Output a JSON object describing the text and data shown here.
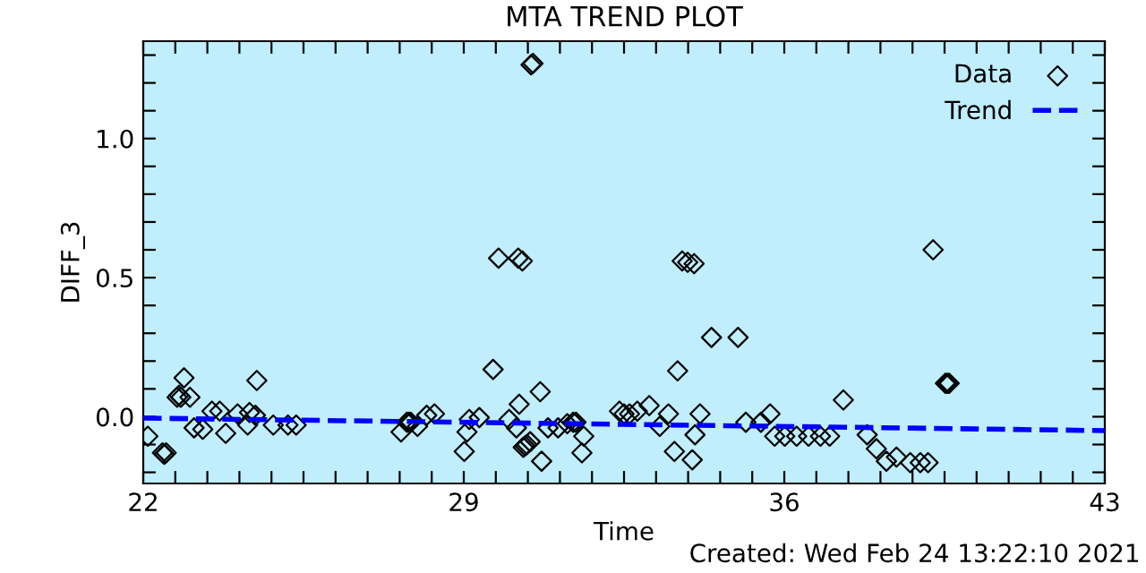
{
  "chart_data": {
    "type": "scatter",
    "title": "MTA TREND PLOT",
    "xlabel": "Time",
    "ylabel": "DIFF_3",
    "annotations": [
      "Created: Wed Feb 24 13:22:10 2021"
    ],
    "xlim": [
      22,
      43
    ],
    "ylim": [
      -0.24,
      1.35
    ],
    "xticks": [
      {
        "value": 22,
        "label": "22"
      },
      {
        "value": 22.7,
        "label": null
      },
      {
        "value": 23.4,
        "label": null
      },
      {
        "value": 24.1,
        "label": null
      },
      {
        "value": 24.8,
        "label": null
      },
      {
        "value": 25.5,
        "label": null
      },
      {
        "value": 26.2,
        "label": null
      },
      {
        "value": 26.9,
        "label": null
      },
      {
        "value": 27.6,
        "label": null
      },
      {
        "value": 28.3,
        "label": null
      },
      {
        "value": 29,
        "label": "29"
      },
      {
        "value": 29.7,
        "label": null
      },
      {
        "value": 30.4,
        "label": null
      },
      {
        "value": 31.1,
        "label": null
      },
      {
        "value": 31.8,
        "label": null
      },
      {
        "value": 32.5,
        "label": null
      },
      {
        "value": 33.2,
        "label": null
      },
      {
        "value": 33.9,
        "label": null
      },
      {
        "value": 34.6,
        "label": null
      },
      {
        "value": 35.3,
        "label": null
      },
      {
        "value": 36,
        "label": "36"
      },
      {
        "value": 36.7,
        "label": null
      },
      {
        "value": 37.4,
        "label": null
      },
      {
        "value": 38.1,
        "label": null
      },
      {
        "value": 38.8,
        "label": null
      },
      {
        "value": 39.5,
        "label": null
      },
      {
        "value": 40.2,
        "label": null
      },
      {
        "value": 40.9,
        "label": null
      },
      {
        "value": 41.6,
        "label": null
      },
      {
        "value": 42.3,
        "label": null
      },
      {
        "value": 43,
        "label": "43"
      }
    ],
    "yticks": [
      {
        "value": -0.2,
        "label": null
      },
      {
        "value": -0.1,
        "label": null
      },
      {
        "value": 0.0,
        "label": "0.0"
      },
      {
        "value": 0.1,
        "label": null
      },
      {
        "value": 0.2,
        "label": null
      },
      {
        "value": 0.3,
        "label": null
      },
      {
        "value": 0.4,
        "label": null
      },
      {
        "value": 0.5,
        "label": "0.5"
      },
      {
        "value": 0.6,
        "label": null
      },
      {
        "value": 0.7,
        "label": null
      },
      {
        "value": 0.8,
        "label": null
      },
      {
        "value": 0.9,
        "label": null
      },
      {
        "value": 1.0,
        "label": "1.0"
      },
      {
        "value": 1.1,
        "label": null
      },
      {
        "value": 1.2,
        "label": null
      },
      {
        "value": 1.3,
        "label": null
      }
    ],
    "grid": false,
    "legend": "top right",
    "series": [
      {
        "name": "Data",
        "color": "#000000",
        "marker": "diamond",
        "x": [
          22.1,
          22.42,
          22.46,
          22.5,
          22.74,
          22.78,
          22.82,
          22.89,
          23.02,
          23.11,
          23.3,
          23.5,
          23.67,
          23.8,
          24.06,
          24.28,
          24.32,
          24.45,
          24.48,
          24.84,
          25.16,
          25.34,
          27.63,
          27.76,
          27.8,
          27.84,
          27.99,
          28.19,
          28.36,
          29.01,
          29.07,
          29.12,
          29.34,
          29.64,
          29.76,
          29.99,
          30.15,
          30.19,
          30.21,
          30.28,
          30.3,
          30.34,
          30.38,
          30.45,
          30.47,
          30.51,
          30.67,
          30.7,
          30.84,
          31.06,
          31.26,
          31.39,
          31.45,
          31.58,
          31.62,
          32.4,
          32.5,
          32.62,
          32.79,
          33.05,
          33.28,
          33.47,
          33.6,
          33.67,
          33.77,
          33.89,
          33.99,
          34.03,
          34.05,
          34.16,
          34.41,
          34.99,
          35.16,
          35.49,
          35.69,
          35.79,
          36.01,
          36.27,
          36.53,
          36.79,
          36.99,
          37.29,
          37.81,
          38.01,
          38.23,
          38.45,
          38.75,
          38.97,
          39.14,
          39.25,
          39.52,
          39.56,
          39.6
        ],
        "values": [
          -0.07,
          -0.13,
          -0.135,
          -0.13,
          0.07,
          0.077,
          0.07,
          0.14,
          0.07,
          -0.04,
          -0.045,
          0.02,
          0.02,
          -0.06,
          0.01,
          -0.03,
          0.015,
          0.005,
          0.13,
          -0.03,
          -0.03,
          -0.03,
          -0.055,
          -0.02,
          -0.02,
          -0.02,
          -0.035,
          0.005,
          0.01,
          -0.125,
          -0.055,
          -0.01,
          -0.003,
          0.17,
          0.57,
          -0.01,
          -0.04,
          0.57,
          0.045,
          0.56,
          -0.11,
          -0.105,
          -0.1,
          -0.09,
          1.265,
          1.27,
          0.09,
          -0.16,
          -0.04,
          -0.04,
          -0.025,
          -0.02,
          -0.02,
          -0.13,
          -0.07,
          0.02,
          0.01,
          0.01,
          0.02,
          0.04,
          -0.035,
          0.01,
          -0.125,
          0.165,
          0.56,
          0.555,
          -0.155,
          0.55,
          -0.065,
          0.01,
          0.285,
          0.285,
          -0.02,
          -0.02,
          0.01,
          -0.07,
          -0.07,
          -0.07,
          -0.07,
          -0.07,
          -0.07,
          0.06,
          -0.065,
          -0.115,
          -0.16,
          -0.145,
          -0.165,
          -0.165,
          -0.165,
          0.6,
          0.12,
          0.12,
          0.12
        ]
      },
      {
        "name": "Trend",
        "type": "line",
        "color": "#0000ff",
        "marker": "none",
        "line_style": "dashed",
        "x": [
          22,
          43
        ],
        "values": [
          -0.005,
          -0.05
        ]
      }
    ]
  }
}
